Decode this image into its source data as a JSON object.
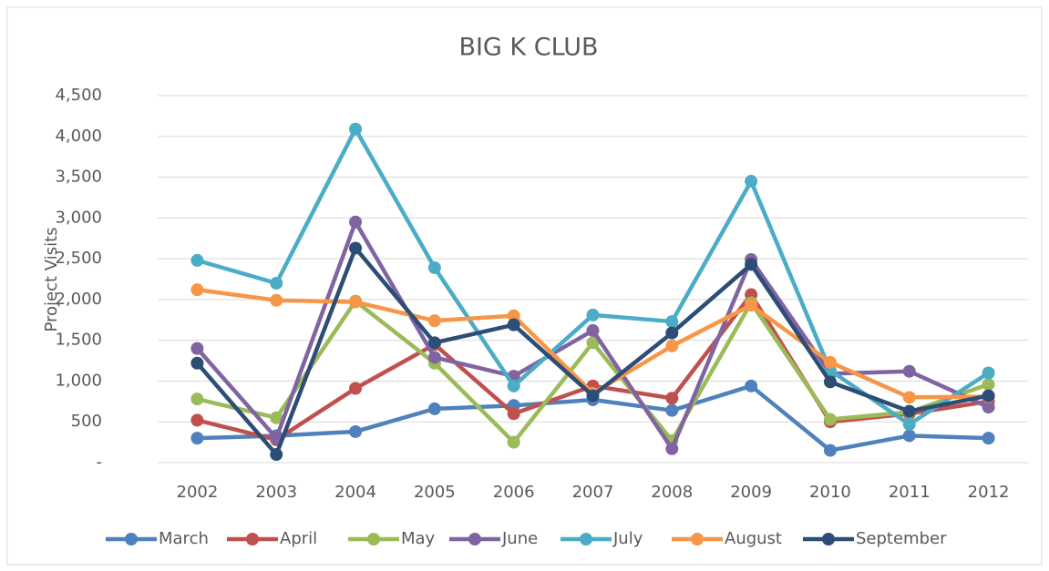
{
  "chart_data": {
    "type": "line",
    "title": "BIG K CLUB",
    "y_label": "Project Visits",
    "categories": [
      "2002",
      "2003",
      "2004",
      "2005",
      "2006",
      "2007",
      "2008",
      "2009",
      "2010",
      "2011",
      "2012"
    ],
    "series": [
      {
        "name": "March",
        "color": "#4f81bd",
        "values": [
          300,
          330,
          380,
          660,
          700,
          770,
          640,
          940,
          150,
          330,
          300
        ]
      },
      {
        "name": "April",
        "color": "#c0504d",
        "values": [
          520,
          280,
          910,
          1450,
          600,
          940,
          790,
          2060,
          500,
          600,
          750
        ]
      },
      {
        "name": "May",
        "color": "#9bbb59",
        "values": [
          780,
          550,
          1980,
          1220,
          250,
          1470,
          270,
          1960,
          530,
          620,
          960
        ]
      },
      {
        "name": "June",
        "color": "#8064a2",
        "values": [
          1400,
          300,
          2950,
          1290,
          1060,
          1620,
          170,
          2490,
          1090,
          1120,
          680
        ]
      },
      {
        "name": "July",
        "color": "#4bacc6",
        "values": [
          2480,
          2200,
          4090,
          2390,
          940,
          1810,
          1730,
          3450,
          1130,
          470,
          1100
        ]
      },
      {
        "name": "August",
        "color": "#f79646",
        "values": [
          2120,
          1990,
          1970,
          1740,
          1800,
          850,
          1430,
          1930,
          1230,
          800,
          810
        ]
      },
      {
        "name": "September",
        "color": "#2c4d75",
        "values": [
          1220,
          100,
          2630,
          1470,
          1690,
          820,
          1590,
          2430,
          990,
          630,
          820
        ]
      }
    ],
    "ylim": [
      0,
      4500
    ],
    "yticks": [
      {
        "value": 0,
        "label": "-"
      },
      500,
      {
        "value": 1000,
        "label": "1,000"
      },
      {
        "value": 1500,
        "label": "1,500"
      },
      {
        "value": 2000,
        "label": "2,000"
      },
      {
        "value": 2500,
        "label": "2,500"
      },
      {
        "value": 3000,
        "label": "3,000"
      },
      {
        "value": 3500,
        "label": "3,500"
      },
      {
        "value": 4000,
        "label": "4,000"
      },
      {
        "value": 4500,
        "label": "4,500"
      }
    ],
    "grid": true,
    "legend": "bottom"
  }
}
